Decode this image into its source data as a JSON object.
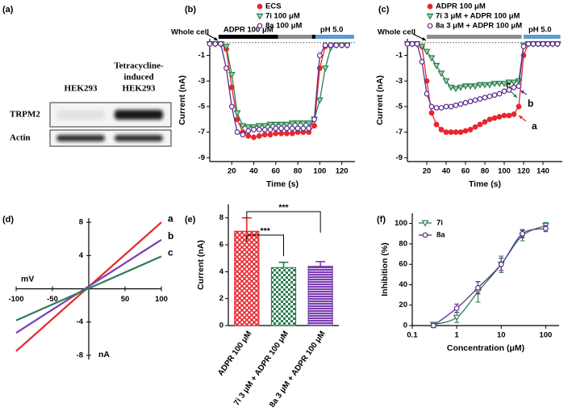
{
  "chart_data": [
    {
      "type": "blot",
      "panel": "(a)",
      "columns": [
        [
          "HEK293"
        ],
        [
          "Tetracycline-",
          "induced",
          "HEK293"
        ]
      ],
      "rows": [
        "TRPM2",
        "Actin"
      ]
    },
    {
      "type": "line",
      "panel": "(b)",
      "xlabel": "Time (s)",
      "ylabel": "Current (nA)",
      "xlim": [
        0,
        132
      ],
      "ylim": [
        -9.3,
        0.3
      ],
      "xticks": [
        20,
        40,
        60,
        80,
        100,
        120
      ],
      "yticks": [
        -1,
        -3,
        -5,
        -7,
        -9
      ],
      "zero_line": true,
      "annotation": "Whole cell",
      "bars": [
        {
          "label": "ADPR 100 μM",
          "color": "#000000",
          "span": [
            8,
            131
          ]
        },
        {
          "color": "#8c8c8c",
          "span": [
            62,
            93
          ]
        },
        {
          "label": "pH 5.0",
          "color": "#5b9bd5",
          "span": [
            96,
            131
          ]
        }
      ],
      "x": [
        0,
        5,
        10,
        15,
        20,
        25,
        30,
        35,
        40,
        45,
        50,
        55,
        60,
        65,
        70,
        75,
        80,
        85,
        90,
        95,
        100,
        105,
        110,
        115,
        120,
        125
      ],
      "series": [
        {
          "name": "ECS",
          "color": "#e8262d",
          "marker": "circle",
          "values": [
            -0.1,
            -0.1,
            -0.1,
            -0.5,
            -3.5,
            -6,
            -7,
            -7.3,
            -7.4,
            -7.3,
            -7.2,
            -7.2,
            -7.1,
            -7.1,
            -7.1,
            -7.1,
            -7,
            -7,
            -7,
            -6.5,
            -2,
            -0.3,
            -0.2,
            -0.2,
            -0.2,
            -0.2
          ]
        },
        {
          "name": "7i 100 μM",
          "color": "#2e7d4f",
          "marker": "triangle",
          "values": [
            -0.1,
            -0.1,
            -0.1,
            -0.3,
            -2.5,
            -5.5,
            -6.5,
            -6.6,
            -6.6,
            -6.5,
            -6.5,
            -6.4,
            -6.4,
            -6.4,
            -6.4,
            -6.3,
            -6.3,
            -6.3,
            -6.3,
            -6,
            -4.5,
            -2,
            -0.4,
            -0.2,
            -0.2,
            -0.2
          ]
        },
        {
          "name": "8a 100 μM",
          "color": "#5b2d8e",
          "marker": "open-circle",
          "values": [
            -0.1,
            -0.1,
            -0.1,
            -2,
            -5,
            -7,
            -7.2,
            -6.9,
            -6.8,
            -6.8,
            -6.8,
            -6.8,
            -6.7,
            -6.7,
            -6.7,
            -6.7,
            -6.7,
            -6.7,
            -6.7,
            -6,
            -1,
            -0.2,
            -0.2,
            -0.2,
            -0.2,
            -0.2
          ]
        }
      ]
    },
    {
      "type": "line",
      "panel": "(c)",
      "xlabel": "Time (s)",
      "ylabel": "Current (nA)",
      "xlim": [
        0,
        160
      ],
      "ylim": [
        -9.3,
        0.3
      ],
      "xticks": [
        20,
        40,
        60,
        80,
        100,
        120,
        140
      ],
      "yticks": [
        -1,
        -3,
        -5,
        -7,
        -9
      ],
      "zero_line": true,
      "annotation": "Whole cell",
      "bars": [
        {
          "color": "#8c8c8c",
          "span": [
            20,
            118
          ]
        },
        {
          "label": "pH 5.0",
          "color": "#5b9bd5",
          "span": [
            120,
            158
          ]
        }
      ],
      "x": [
        0,
        5,
        10,
        15,
        20,
        25,
        30,
        35,
        40,
        45,
        50,
        55,
        60,
        65,
        70,
        75,
        80,
        85,
        90,
        95,
        100,
        105,
        110,
        115,
        120,
        125,
        130,
        135,
        140,
        145,
        150,
        155
      ],
      "series": [
        {
          "name": "ADPR 100 μM",
          "tag": "a",
          "color": "#e8262d",
          "marker": "circle",
          "values": [
            -0.1,
            -0.1,
            -0.1,
            -0.3,
            -3,
            -5.5,
            -6.4,
            -6.8,
            -7,
            -7,
            -7,
            -7,
            -6.9,
            -6.8,
            -6.6,
            -6.4,
            -6.2,
            -6,
            -5.9,
            -5.8,
            -5.7,
            -5.7,
            -5.6,
            -5,
            -1,
            -0.1,
            -0.1,
            -0.1,
            -0.1,
            -0.1,
            -0.1,
            -0.1
          ]
        },
        {
          "name": "7i 3 μM + ADPR 100 μM",
          "tag": "c",
          "color": "#2e7d4f",
          "marker": "triangle",
          "values": [
            -0.1,
            -0.1,
            -0.1,
            -0.3,
            -0.7,
            -1.2,
            -1.8,
            -2.4,
            -3,
            -3.5,
            -3.6,
            -3.5,
            -3.4,
            -3.4,
            -3.4,
            -3.3,
            -3.3,
            -3.3,
            -3.2,
            -3.2,
            -3.2,
            -3.1,
            -3.1,
            -3,
            -0.2,
            -0.1,
            -0.1,
            -0.1,
            -0.1,
            -0.1,
            -0.1,
            -0.1
          ]
        },
        {
          "name": "8a 3 μM + ADPR 100 μM",
          "tag": "b",
          "color": "#5b2d8e",
          "marker": "open-circle",
          "values": [
            -0.1,
            -0.1,
            -0.1,
            -1.5,
            -4,
            -5,
            -5.1,
            -5.1,
            -5,
            -5,
            -4.9,
            -4.8,
            -4.7,
            -4.6,
            -4.5,
            -4.4,
            -4.3,
            -4.2,
            -4.1,
            -4,
            -3.8,
            -3.7,
            -3.5,
            -3.4,
            -0.3,
            -0.1,
            -0.1,
            -0.1,
            -0.1,
            -0.1,
            -0.1,
            -0.1
          ]
        }
      ]
    },
    {
      "type": "line",
      "panel": "(d)",
      "axes": "origin",
      "xlabel": "mV",
      "ylabel": "nA",
      "xlim": [
        -100,
        100
      ],
      "ylim": [
        -8.5,
        8.5
      ],
      "xticks": [
        -100,
        -50,
        50,
        100
      ],
      "yticks": [
        -8,
        -4,
        4,
        8
      ],
      "x": [
        -100,
        100
      ],
      "series": [
        {
          "name": "a",
          "color": "#e8262d",
          "values": [
            -7.5,
            8
          ]
        },
        {
          "name": "b",
          "color": "#7b3fb0",
          "values": [
            -5.3,
            5.9
          ]
        },
        {
          "name": "c",
          "color": "#2e7d5b",
          "values": [
            -3.8,
            3.9
          ]
        }
      ]
    },
    {
      "type": "bar",
      "panel": "(e)",
      "ylabel": "Current (nA)",
      "categories": [
        "ADPR 100 μM",
        "7i 3 μM + ADPR 100 μM",
        "8a 3 μM + ADPR 100 μM"
      ],
      "values": [
        7.0,
        4.3,
        4.4
      ],
      "errors": [
        1.0,
        0.4,
        0.35
      ],
      "colors": [
        "#e8262d",
        "#2e7d4f",
        "#7b3fb0"
      ],
      "hatches": [
        "cross",
        "checker",
        "hlines"
      ],
      "ylim": [
        0,
        9
      ],
      "yticks": [
        0,
        2,
        4,
        6,
        8
      ],
      "significance": [
        "***",
        "***"
      ]
    },
    {
      "type": "scatter",
      "panel": "(f)",
      "xlabel": "Concentration (μM)",
      "ylabel": "Inhibition (%)",
      "xscale": "log",
      "xlim": [
        0.1,
        200
      ],
      "ylim": [
        0,
        110
      ],
      "xticks": [
        0.1,
        1,
        10,
        100
      ],
      "yticks": [
        0,
        20,
        40,
        60,
        80,
        100
      ],
      "fit": true,
      "x": [
        0.3,
        1,
        3,
        10,
        30,
        100
      ],
      "series": [
        {
          "name": "7i",
          "color": "#2e7d4f",
          "marker": "open-triangle",
          "values": [
            1,
            8,
            33,
            60,
            88,
            98
          ],
          "errors": [
            2,
            5,
            10,
            8,
            5,
            3
          ]
        },
        {
          "name": "8a",
          "color": "#5b2d8e",
          "marker": "open-circle",
          "values": [
            0,
            17,
            37,
            60,
            90,
            95
          ],
          "errors": [
            2,
            4,
            6,
            6,
            4,
            3
          ]
        }
      ]
    }
  ]
}
